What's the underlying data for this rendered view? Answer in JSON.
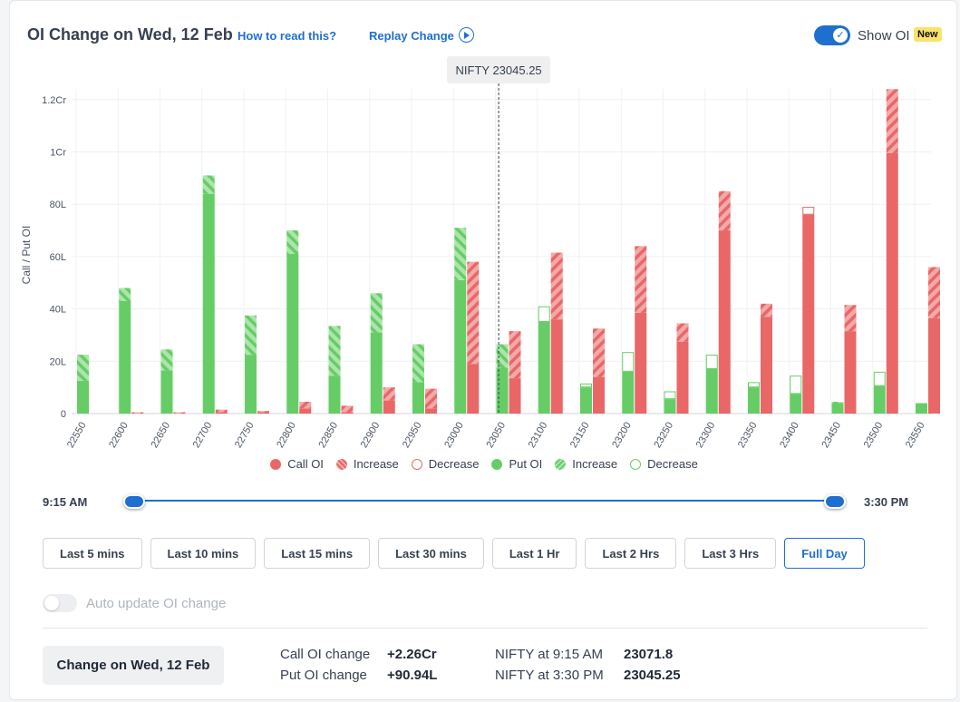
{
  "header": {
    "title": "OI Change on Wed, 12 Feb",
    "how_to_read": "How to read this?",
    "replay": "Replay Change",
    "show_oi_label": "Show OI",
    "new_badge": "New"
  },
  "chart_data": {
    "type": "bar",
    "ylabel": "Call / Put OI",
    "y_unit": "lakh",
    "ylim": [
      0,
      124
    ],
    "y_ticks": [
      {
        "value": 0,
        "label": "0"
      },
      {
        "value": 20,
        "label": "20L"
      },
      {
        "value": 40,
        "label": "40L"
      },
      {
        "value": 60,
        "label": "60L"
      },
      {
        "value": 80,
        "label": "80L"
      },
      {
        "value": 100,
        "label": "1Cr"
      },
      {
        "value": 120,
        "label": "1.2Cr"
      }
    ],
    "categories": [
      "22550",
      "22600",
      "22650",
      "22700",
      "22750",
      "22800",
      "22850",
      "22900",
      "22950",
      "23000",
      "23050",
      "23100",
      "23150",
      "23200",
      "23250",
      "23300",
      "23350",
      "23400",
      "23450",
      "23500",
      "23550"
    ],
    "spot": {
      "strike": 23045.25,
      "label": "NIFTY 23045.25"
    },
    "series": [
      {
        "name": "Put OI",
        "base": [
          12.5,
          43,
          16.5,
          84,
          22.5,
          61,
          14.5,
          31,
          12,
          51,
          17.5,
          35,
          10,
          16,
          5.5,
          17,
          10,
          7.5,
          4,
          10.5,
          3.5
        ],
        "change": [
          10,
          5,
          8,
          7,
          15,
          9,
          19,
          15,
          14.5,
          20,
          9,
          6,
          1.5,
          7.5,
          3,
          5.5,
          2,
          7,
          0.5,
          5.5,
          0.5
        ],
        "change_type": [
          "inc",
          "inc",
          "inc",
          "inc",
          "inc",
          "inc",
          "inc",
          "inc",
          "inc",
          "inc",
          "inc",
          "dec",
          "dec",
          "dec",
          "dec",
          "dec",
          "dec",
          "dec",
          "inc",
          "dec",
          "dec"
        ]
      },
      {
        "name": "Call OI",
        "base": [
          0,
          0,
          0,
          0.5,
          0.5,
          2,
          0.5,
          5,
          2,
          19,
          13.5,
          36,
          14,
          38.5,
          27.5,
          70,
          37,
          76,
          31.5,
          99.5,
          36.5
        ],
        "change": [
          0,
          0.5,
          0.5,
          1,
          0.5,
          2.5,
          2.5,
          5,
          7.5,
          39,
          18,
          25.5,
          18.5,
          25.5,
          7,
          15,
          5,
          3,
          10,
          24.5,
          19.5
        ],
        "change_type": [
          "inc",
          "inc",
          "inc",
          "inc",
          "inc",
          "inc",
          "inc",
          "inc",
          "inc",
          "inc",
          "inc",
          "inc",
          "inc",
          "inc",
          "inc",
          "inc",
          "inc",
          "dec",
          "inc",
          "inc",
          "inc"
        ]
      }
    ],
    "colors": {
      "call": "#e96767",
      "call_light": "#f3a9a9",
      "put": "#66cd66",
      "put_light": "#ace5ac"
    },
    "legend": [
      {
        "label": "Call OI",
        "kind": "call-solid"
      },
      {
        "label": "Increase",
        "kind": "call-hatch"
      },
      {
        "label": "Decrease",
        "kind": "call-hollow"
      },
      {
        "label": "Put OI",
        "kind": "put-solid"
      },
      {
        "label": "Increase",
        "kind": "put-hatch"
      },
      {
        "label": "Decrease",
        "kind": "put-hollow"
      }
    ],
    "legend_position": "bottom",
    "grid": true
  },
  "time_range": {
    "start": "9:15 AM",
    "end": "3:30 PM",
    "buttons": [
      "Last 5 mins",
      "Last 10 mins",
      "Last 15 mins",
      "Last 30 mins",
      "Last 1 Hr",
      "Last 2 Hrs",
      "Last 3 Hrs",
      "Full Day"
    ],
    "active": "Full Day"
  },
  "auto_update_label": "Auto update OI change",
  "summary": {
    "button": "Change on Wed, 12 Feb",
    "call_change_label": "Call OI change",
    "call_change_value": "+2.26Cr",
    "put_change_label": "Put OI change",
    "put_change_value": "+90.94L",
    "nifty_open_label": "NIFTY at 9:15 AM",
    "nifty_open_value": "23071.8",
    "nifty_close_label": "NIFTY at 3:30 PM",
    "nifty_close_value": "23045.25"
  }
}
